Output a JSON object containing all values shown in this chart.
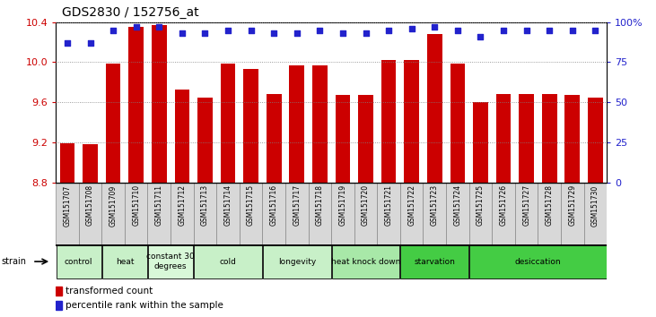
{
  "title": "GDS2830 / 152756_at",
  "samples": [
    "GSM151707",
    "GSM151708",
    "GSM151709",
    "GSM151710",
    "GSM151711",
    "GSM151712",
    "GSM151713",
    "GSM151714",
    "GSM151715",
    "GSM151716",
    "GSM151717",
    "GSM151718",
    "GSM151719",
    "GSM151720",
    "GSM151721",
    "GSM151722",
    "GSM151723",
    "GSM151724",
    "GSM151725",
    "GSM151726",
    "GSM151727",
    "GSM151728",
    "GSM151729",
    "GSM151730"
  ],
  "bar_values": [
    9.19,
    9.18,
    9.99,
    10.35,
    10.37,
    9.73,
    9.65,
    9.99,
    9.93,
    9.68,
    9.97,
    9.97,
    9.67,
    9.67,
    10.02,
    10.02,
    10.28,
    9.99,
    9.6,
    9.68,
    9.68,
    9.68,
    9.67,
    9.65
  ],
  "percentile_values": [
    87,
    87,
    95,
    97,
    97,
    93,
    93,
    95,
    95,
    93,
    93,
    95,
    93,
    93,
    95,
    96,
    97,
    95,
    91,
    95,
    95,
    95,
    95,
    95
  ],
  "bar_color": "#cc0000",
  "dot_color": "#2222cc",
  "ylim_left": [
    8.8,
    10.4
  ],
  "ylim_right": [
    0,
    100
  ],
  "yticks_left": [
    8.8,
    9.2,
    9.6,
    10.0,
    10.4
  ],
  "yticks_right": [
    0,
    25,
    50,
    75,
    100
  ],
  "groups": [
    {
      "label": "control",
      "start": 0,
      "end": 1,
      "color": "#c8f0c8"
    },
    {
      "label": "heat",
      "start": 2,
      "end": 3,
      "color": "#c8f0c8"
    },
    {
      "label": "constant 30\ndegrees",
      "start": 4,
      "end": 5,
      "color": "#d8f8d8"
    },
    {
      "label": "cold",
      "start": 6,
      "end": 8,
      "color": "#c8f0c8"
    },
    {
      "label": "longevity",
      "start": 9,
      "end": 11,
      "color": "#c8f0c8"
    },
    {
      "label": "heat knock down",
      "start": 12,
      "end": 14,
      "color": "#a8e8a8"
    },
    {
      "label": "starvation",
      "start": 15,
      "end": 17,
      "color": "#44cc44"
    },
    {
      "label": "desiccation",
      "start": 18,
      "end": 23,
      "color": "#44cc44"
    }
  ],
  "legend_items": [
    {
      "label": "transformed count",
      "color": "#cc0000"
    },
    {
      "label": "percentile rank within the sample",
      "color": "#2222cc"
    }
  ],
  "bg_color": "#ffffff",
  "left_tick_color": "#cc0000",
  "right_tick_color": "#2222cc",
  "xtick_cell_color": "#d8d8d8",
  "xtick_cell_border": "#888888"
}
